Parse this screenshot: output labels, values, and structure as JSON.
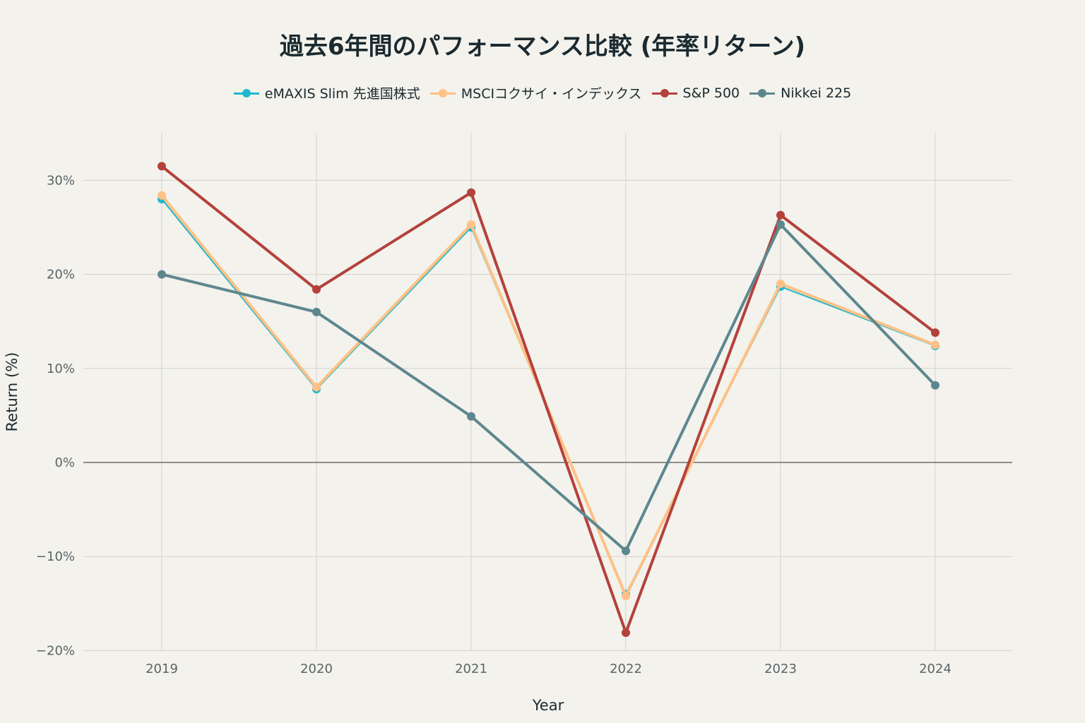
{
  "chart_data": {
    "type": "line",
    "title": "過去6年間のパフォーマンス比較 (年率リターン)",
    "xlabel": "Year",
    "ylabel": "Return (%)",
    "categories": [
      "2019",
      "2020",
      "2021",
      "2022",
      "2023",
      "2024"
    ],
    "ylim": [
      -20,
      35
    ],
    "yticks": [
      -20,
      -10,
      0,
      10,
      20,
      30
    ],
    "ytick_labels": [
      "−20%",
      "−10%",
      "0%",
      "10%",
      "20%",
      "30%"
    ],
    "grid": true,
    "legend_position": "top-center",
    "series": [
      {
        "name": "eMAXIS Slim 先進国株式",
        "color": "#1fb8cd",
        "values": [
          28.0,
          7.8,
          25.0,
          -14.0,
          18.7,
          12.4
        ]
      },
      {
        "name": "MSCIコクサイ・インデックス",
        "color": "#ffc185",
        "values": [
          28.4,
          8.0,
          25.3,
          -14.2,
          19.0,
          12.5
        ]
      },
      {
        "name": "S&P 500",
        "color": "#b4413c",
        "values": [
          31.5,
          18.4,
          28.7,
          -18.1,
          26.3,
          13.8
        ]
      },
      {
        "name": "Nikkei 225",
        "color": "#5d878f",
        "values": [
          20.0,
          16.0,
          4.9,
          -9.4,
          25.3,
          8.2
        ]
      }
    ]
  }
}
